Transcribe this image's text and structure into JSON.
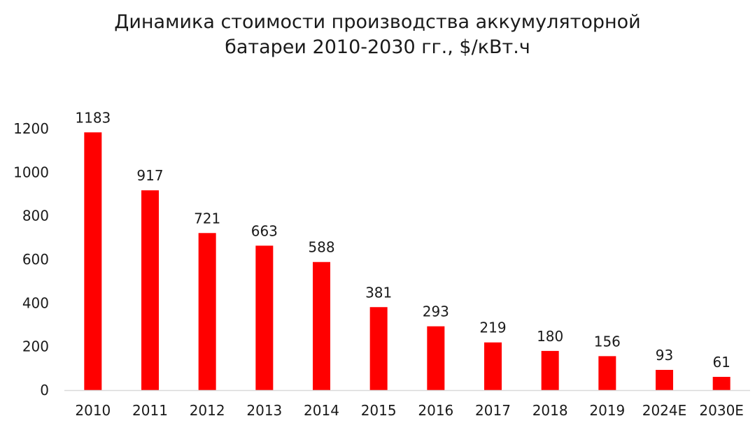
{
  "chart_data": {
    "type": "bar",
    "title": "Динамика стоимости производства аккумуляторной батареи 2010-2030 гг., $/кВт.ч",
    "title_lines": [
      "Динамика стоимости производства аккумуляторной",
      "батареи 2010-2030 гг., $/кВт.ч"
    ],
    "xlabel": "",
    "ylabel": "",
    "categories": [
      "2010",
      "2011",
      "2012",
      "2013",
      "2014",
      "2015",
      "2016",
      "2017",
      "2018",
      "2019",
      "2024E",
      "2030E"
    ],
    "values": [
      1183,
      917,
      721,
      663,
      588,
      381,
      293,
      219,
      180,
      156,
      93,
      61
    ],
    "ylim": [
      0,
      1200
    ],
    "yticks": [
      0,
      200,
      400,
      600,
      800,
      1000,
      1200
    ],
    "grid": false,
    "legend": false,
    "data_labels": true,
    "bar_color": "#ff0000",
    "axis_color": "#d9d9d9"
  }
}
